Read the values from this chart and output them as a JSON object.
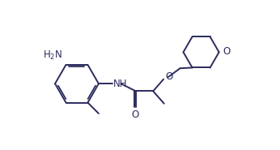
{
  "bg_color": "#ffffff",
  "line_color": "#2b2b5e",
  "line_width": 1.4,
  "font_size": 8.5,
  "figsize": [
    3.46,
    1.85
  ],
  "dpi": 100,
  "xlim": [
    0.0,
    10.0
  ],
  "ylim": [
    1.5,
    7.5
  ]
}
